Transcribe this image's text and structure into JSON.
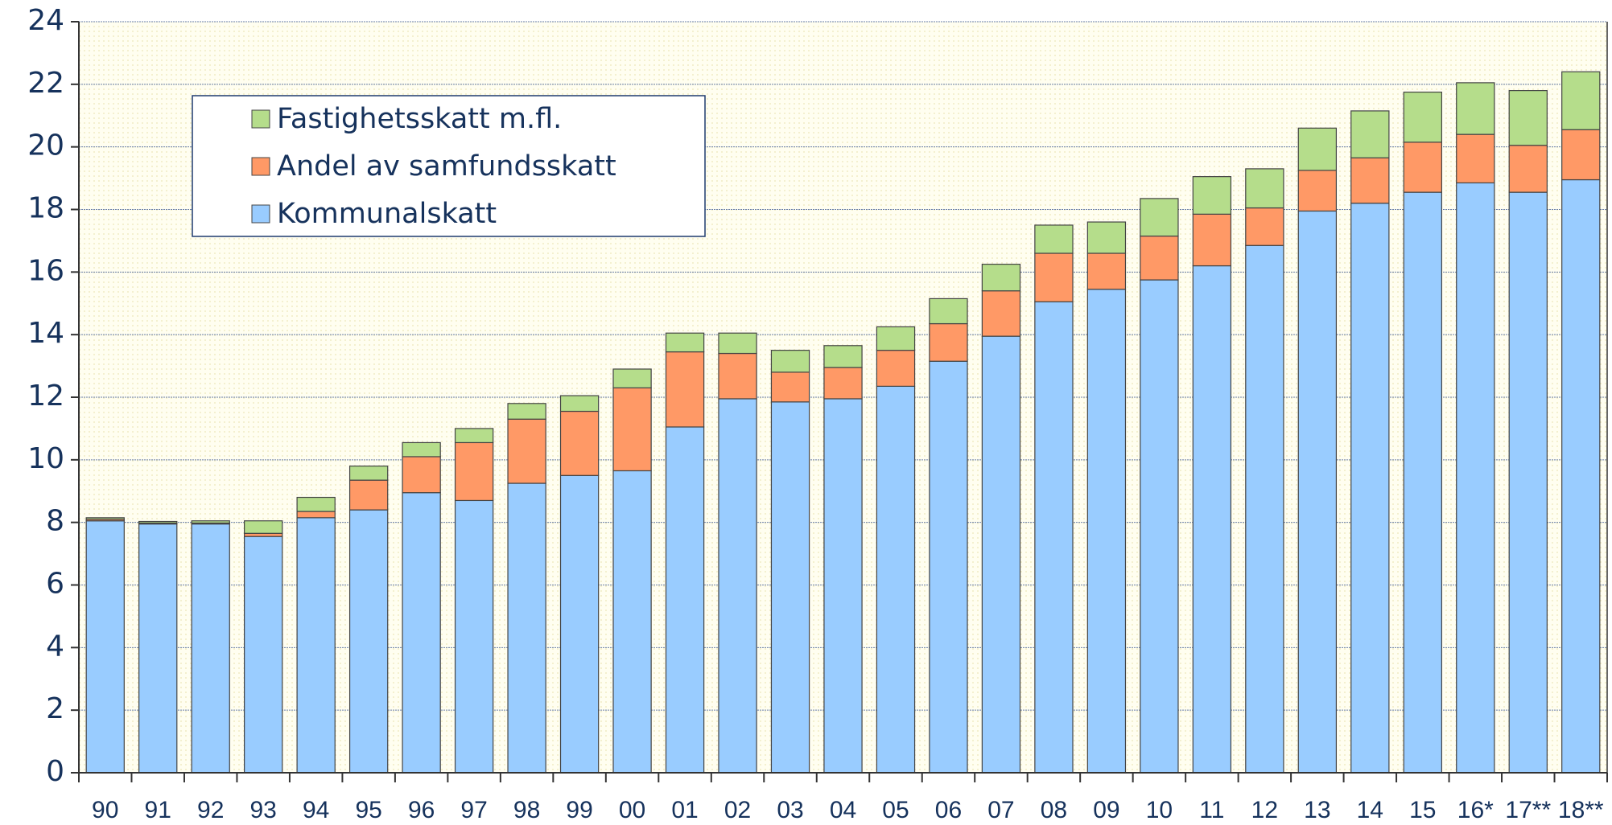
{
  "chart_data": {
    "type": "stacked_bar",
    "categories": [
      "90",
      "91",
      "92",
      "93",
      "94",
      "95",
      "96",
      "97",
      "98",
      "99",
      "00",
      "01",
      "02",
      "03",
      "04",
      "05",
      "06",
      "07",
      "08",
      "09",
      "10",
      "11",
      "12",
      "13",
      "14",
      "15",
      "16*",
      "17**",
      "18**"
    ],
    "series": [
      {
        "name": "Kommunalskatt",
        "color": "#99ccff",
        "values": [
          8.05,
          7.95,
          7.95,
          7.55,
          8.15,
          8.4,
          8.95,
          8.7,
          9.25,
          9.5,
          9.65,
          11.05,
          11.95,
          11.85,
          11.95,
          12.35,
          13.15,
          13.95,
          15.05,
          15.45,
          15.75,
          16.2,
          16.85,
          17.95,
          18.2,
          18.55,
          18.85,
          18.55,
          18.95
        ]
      },
      {
        "name": "Andel av samfundsskatt",
        "color": "#ff9966",
        "values": [
          0.05,
          0.03,
          0.03,
          0.1,
          0.2,
          0.95,
          1.15,
          1.85,
          2.05,
          2.05,
          2.65,
          2.4,
          1.45,
          0.95,
          1.0,
          1.15,
          1.2,
          1.45,
          1.55,
          1.15,
          1.4,
          1.65,
          1.2,
          1.3,
          1.45,
          1.6,
          1.55,
          1.5,
          1.6
        ]
      },
      {
        "name": "Fastighetsskatt m.fl.",
        "color": "#b5dd8b",
        "values": [
          0.05,
          0.05,
          0.07,
          0.4,
          0.45,
          0.45,
          0.45,
          0.45,
          0.5,
          0.5,
          0.6,
          0.6,
          0.65,
          0.7,
          0.7,
          0.75,
          0.8,
          0.85,
          0.9,
          1.0,
          1.2,
          1.2,
          1.25,
          1.35,
          1.5,
          1.6,
          1.65,
          1.75,
          1.85
        ]
      }
    ],
    "ylim": [
      0,
      24
    ],
    "yticks": [
      0,
      2,
      4,
      6,
      8,
      10,
      12,
      14,
      16,
      18,
      20,
      22,
      24
    ],
    "grid": true
  }
}
